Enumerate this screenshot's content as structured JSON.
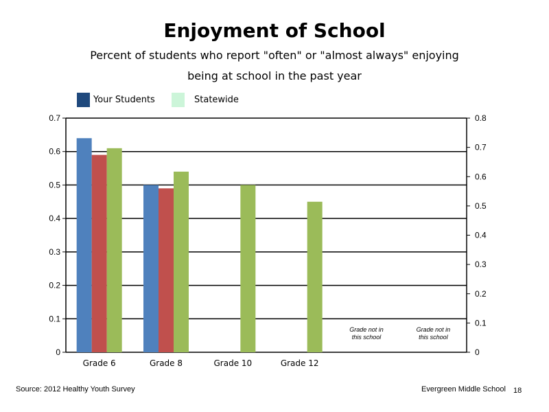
{
  "title": "Enjoyment of School",
  "subtitle_line1": "Percent of students who report \"often\" or \"almost always\" enjoying",
  "subtitle_line2": "being at school in the past year",
  "legend": [
    {
      "label": "Your Students",
      "color": "#1f497d"
    },
    {
      "label": "Statewide",
      "color": "#ccf5d9"
    }
  ],
  "footer": {
    "source": "Source: 2012 Healthy Youth Survey",
    "school": "Evergreen Middle  School",
    "page_number": "18"
  },
  "chart_data": {
    "type": "bar",
    "categories": [
      "Grade 6",
      "Grade 8",
      "Grade 10",
      "Grade 12",
      "",
      ""
    ],
    "series": [
      {
        "values": [
          0.64,
          0.5,
          null,
          null,
          null,
          null
        ],
        "color": "#4f81bd"
      },
      {
        "values": [
          0.59,
          0.49,
          null,
          null,
          null,
          null
        ],
        "color": "#c0504d"
      },
      {
        "values": [
          0.61,
          0.54,
          0.5,
          0.45,
          null,
          null
        ],
        "color": "#9bbb59"
      }
    ],
    "ylim": [
      0,
      0.7
    ],
    "y_ticks": [
      "0",
      "0.1",
      "0.2",
      "0.3",
      "0.4",
      "0.5",
      "0.6",
      "0.7"
    ],
    "y2lim": [
      0,
      0.8
    ],
    "y2_ticks": [
      "0",
      "0.1",
      "0.2",
      "0.3",
      "0.4",
      "0.5",
      "0.6",
      "0.7",
      "0.8"
    ],
    "annotations": [
      {
        "category_index": 4,
        "line1": "Grade not in",
        "line2": "this school"
      },
      {
        "category_index": 5,
        "line1": "Grade not in",
        "line2": "this school"
      }
    ],
    "grid": true
  }
}
